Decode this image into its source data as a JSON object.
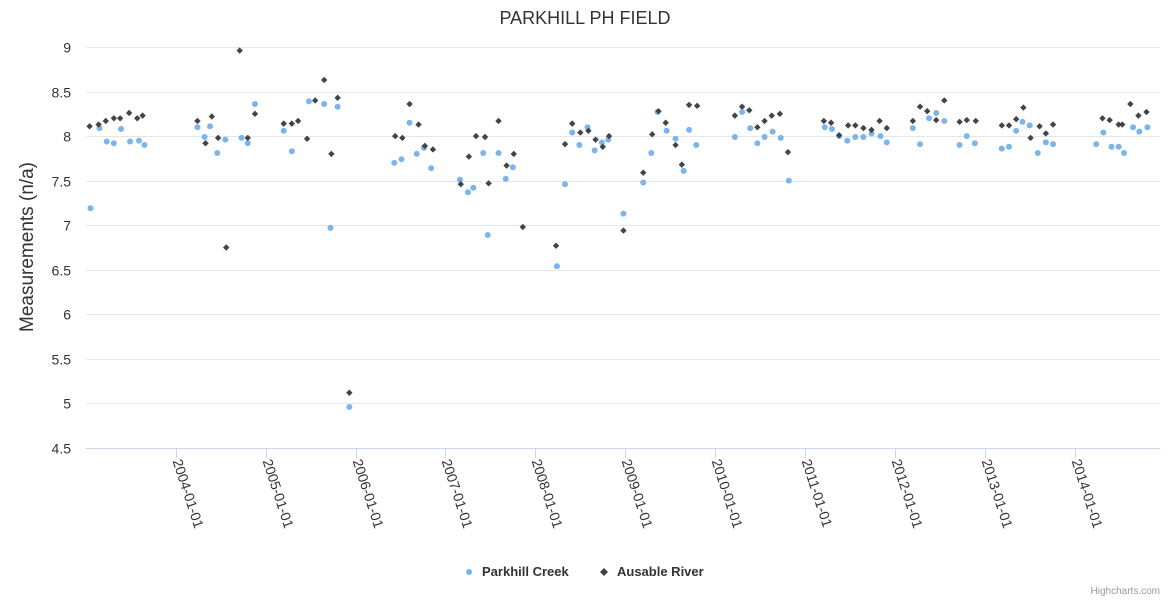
{
  "chart_data": {
    "type": "scatter",
    "title": "PARKHILL PH FIELD",
    "ylabel": "Measurements (n/a)",
    "xlabel": "",
    "ylim": [
      4.5,
      9
    ],
    "yticks": [
      "4.5",
      "5",
      "5.5",
      "6",
      "6.5",
      "7",
      "7.5",
      "8",
      "8.5",
      "9"
    ],
    "xlim": [
      2003.0,
      2014.95
    ],
    "xticks": [
      {
        "label": "2004-01-01",
        "value": 2004.0
      },
      {
        "label": "2005-01-01",
        "value": 2005.0
      },
      {
        "label": "2006-01-01",
        "value": 2006.0
      },
      {
        "label": "2007-01-01",
        "value": 2007.0
      },
      {
        "label": "2008-01-01",
        "value": 2008.0
      },
      {
        "label": "2009-01-01",
        "value": 2009.0
      },
      {
        "label": "2010-01-01",
        "value": 2010.0
      },
      {
        "label": "2011-01-01",
        "value": 2011.0
      },
      {
        "label": "2012-01-01",
        "value": 2012.0
      },
      {
        "label": "2013-01-01",
        "value": 2013.0
      },
      {
        "label": "2014-01-01",
        "value": 2014.0
      }
    ],
    "grid": true,
    "legend_position": "bottom-center",
    "series": [
      {
        "name": "Parkhill Creek",
        "color": "#7cb5ec",
        "marker": "circle",
        "points": [
          [
            2003.05,
            7.19
          ],
          [
            2003.15,
            8.09
          ],
          [
            2003.23,
            7.94
          ],
          [
            2003.31,
            7.92
          ],
          [
            2003.39,
            8.08
          ],
          [
            2003.49,
            7.94
          ],
          [
            2003.59,
            7.95
          ],
          [
            2003.65,
            7.9
          ],
          [
            2004.24,
            8.1
          ],
          [
            2004.32,
            7.99
          ],
          [
            2004.38,
            8.11
          ],
          [
            2004.46,
            7.81
          ],
          [
            2004.55,
            7.96
          ],
          [
            2004.73,
            7.98
          ],
          [
            2004.8,
            7.92
          ],
          [
            2004.88,
            8.36
          ],
          [
            2005.2,
            8.06
          ],
          [
            2005.29,
            7.83
          ],
          [
            2005.48,
            8.39
          ],
          [
            2005.65,
            8.36
          ],
          [
            2005.72,
            6.97
          ],
          [
            2005.8,
            8.33
          ],
          [
            2005.93,
            4.96
          ],
          [
            2006.43,
            7.7
          ],
          [
            2006.51,
            7.74
          ],
          [
            2006.6,
            8.15
          ],
          [
            2006.68,
            7.8
          ],
          [
            2006.76,
            7.87
          ],
          [
            2006.84,
            7.64
          ],
          [
            2007.16,
            7.51
          ],
          [
            2007.25,
            7.37
          ],
          [
            2007.31,
            7.42
          ],
          [
            2007.42,
            7.81
          ],
          [
            2007.47,
            6.89
          ],
          [
            2007.59,
            7.81
          ],
          [
            2007.67,
            7.52
          ],
          [
            2007.75,
            7.65
          ],
          [
            2008.24,
            6.54
          ],
          [
            2008.33,
            7.46
          ],
          [
            2008.41,
            8.04
          ],
          [
            2008.49,
            7.9
          ],
          [
            2008.58,
            8.1
          ],
          [
            2008.66,
            7.84
          ],
          [
            2008.74,
            7.93
          ],
          [
            2008.81,
            7.96
          ],
          [
            2008.98,
            7.13
          ],
          [
            2009.2,
            7.48
          ],
          [
            2009.29,
            7.81
          ],
          [
            2009.36,
            8.27
          ],
          [
            2009.46,
            8.06
          ],
          [
            2009.56,
            7.97
          ],
          [
            2009.65,
            7.61
          ],
          [
            2009.71,
            8.07
          ],
          [
            2009.79,
            7.9
          ],
          [
            2010.22,
            7.99
          ],
          [
            2010.3,
            8.27
          ],
          [
            2010.39,
            8.09
          ],
          [
            2010.47,
            7.92
          ],
          [
            2010.55,
            7.99
          ],
          [
            2010.64,
            8.05
          ],
          [
            2010.73,
            7.98
          ],
          [
            2010.82,
            7.5
          ],
          [
            2011.22,
            8.1
          ],
          [
            2011.3,
            8.08
          ],
          [
            2011.38,
            8.0
          ],
          [
            2011.47,
            7.95
          ],
          [
            2011.56,
            7.99
          ],
          [
            2011.65,
            7.99
          ],
          [
            2011.74,
            8.03
          ],
          [
            2011.84,
            8.0
          ],
          [
            2011.91,
            7.93
          ],
          [
            2012.2,
            8.09
          ],
          [
            2012.28,
            7.91
          ],
          [
            2012.38,
            8.2
          ],
          [
            2012.46,
            8.26
          ],
          [
            2012.55,
            8.17
          ],
          [
            2012.72,
            7.9
          ],
          [
            2012.8,
            8.0
          ],
          [
            2012.89,
            7.92
          ],
          [
            2013.19,
            7.86
          ],
          [
            2013.27,
            7.88
          ],
          [
            2013.35,
            8.06
          ],
          [
            2013.42,
            8.16
          ],
          [
            2013.5,
            8.12
          ],
          [
            2013.59,
            7.81
          ],
          [
            2013.68,
            7.93
          ],
          [
            2013.76,
            7.91
          ],
          [
            2014.24,
            7.91
          ],
          [
            2014.32,
            8.04
          ],
          [
            2014.41,
            7.88
          ],
          [
            2014.49,
            7.88
          ],
          [
            2014.55,
            7.81
          ],
          [
            2014.65,
            8.1
          ],
          [
            2014.72,
            8.05
          ],
          [
            2014.81,
            8.1
          ]
        ]
      },
      {
        "name": "Ausable River",
        "color": "#434348",
        "marker": "diamond",
        "points": [
          [
            2003.04,
            8.11
          ],
          [
            2003.14,
            8.13
          ],
          [
            2003.22,
            8.17
          ],
          [
            2003.31,
            8.2
          ],
          [
            2003.38,
            8.2
          ],
          [
            2003.48,
            8.26
          ],
          [
            2003.57,
            8.2
          ],
          [
            2003.63,
            8.23
          ],
          [
            2004.24,
            8.17
          ],
          [
            2004.33,
            7.92
          ],
          [
            2004.4,
            8.22
          ],
          [
            2004.47,
            7.98
          ],
          [
            2004.56,
            6.75
          ],
          [
            2004.71,
            8.96
          ],
          [
            2004.8,
            7.98
          ],
          [
            2004.88,
            8.25
          ],
          [
            2005.2,
            8.14
          ],
          [
            2005.29,
            8.14
          ],
          [
            2005.36,
            8.17
          ],
          [
            2005.46,
            7.97
          ],
          [
            2005.55,
            8.4
          ],
          [
            2005.65,
            8.63
          ],
          [
            2005.73,
            7.8
          ],
          [
            2005.8,
            8.43
          ],
          [
            2005.93,
            5.12
          ],
          [
            2006.44,
            8.0
          ],
          [
            2006.52,
            7.98
          ],
          [
            2006.6,
            8.36
          ],
          [
            2006.7,
            8.13
          ],
          [
            2006.77,
            7.89
          ],
          [
            2006.86,
            7.85
          ],
          [
            2007.17,
            7.46
          ],
          [
            2007.26,
            7.77
          ],
          [
            2007.34,
            8.0
          ],
          [
            2007.44,
            7.99
          ],
          [
            2007.48,
            7.47
          ],
          [
            2007.59,
            8.17
          ],
          [
            2007.68,
            7.67
          ],
          [
            2007.76,
            7.8
          ],
          [
            2007.86,
            6.98
          ],
          [
            2008.23,
            6.77
          ],
          [
            2008.33,
            7.91
          ],
          [
            2008.41,
            8.14
          ],
          [
            2008.5,
            8.04
          ],
          [
            2008.59,
            8.06
          ],
          [
            2008.67,
            7.96
          ],
          [
            2008.75,
            7.88
          ],
          [
            2008.82,
            8.0
          ],
          [
            2008.98,
            6.94
          ],
          [
            2009.2,
            7.59
          ],
          [
            2009.3,
            8.02
          ],
          [
            2009.37,
            8.28
          ],
          [
            2009.45,
            8.15
          ],
          [
            2009.56,
            7.9
          ],
          [
            2009.63,
            7.68
          ],
          [
            2009.71,
            8.35
          ],
          [
            2009.8,
            8.34
          ],
          [
            2010.22,
            8.23
          ],
          [
            2010.3,
            8.33
          ],
          [
            2010.38,
            8.29
          ],
          [
            2010.47,
            8.1
          ],
          [
            2010.55,
            8.17
          ],
          [
            2010.63,
            8.23
          ],
          [
            2010.72,
            8.25
          ],
          [
            2010.81,
            7.82
          ],
          [
            2011.21,
            8.17
          ],
          [
            2011.29,
            8.15
          ],
          [
            2011.38,
            8.01
          ],
          [
            2011.48,
            8.12
          ],
          [
            2011.56,
            8.12
          ],
          [
            2011.65,
            8.09
          ],
          [
            2011.74,
            8.07
          ],
          [
            2011.83,
            8.17
          ],
          [
            2011.91,
            8.09
          ],
          [
            2012.2,
            8.17
          ],
          [
            2012.28,
            8.33
          ],
          [
            2012.36,
            8.28
          ],
          [
            2012.46,
            8.18
          ],
          [
            2012.55,
            8.4
          ],
          [
            2012.72,
            8.16
          ],
          [
            2012.8,
            8.18
          ],
          [
            2012.9,
            8.17
          ],
          [
            2013.19,
            8.12
          ],
          [
            2013.27,
            8.12
          ],
          [
            2013.35,
            8.19
          ],
          [
            2013.43,
            8.32
          ],
          [
            2013.51,
            7.98
          ],
          [
            2013.61,
            8.11
          ],
          [
            2013.68,
            8.03
          ],
          [
            2013.76,
            8.13
          ],
          [
            2014.31,
            8.2
          ],
          [
            2014.39,
            8.18
          ],
          [
            2014.49,
            8.13
          ],
          [
            2014.53,
            8.13
          ],
          [
            2014.62,
            8.36
          ],
          [
            2014.71,
            8.23
          ],
          [
            2014.8,
            8.27
          ]
        ]
      }
    ]
  },
  "credits": "Highcharts.com"
}
